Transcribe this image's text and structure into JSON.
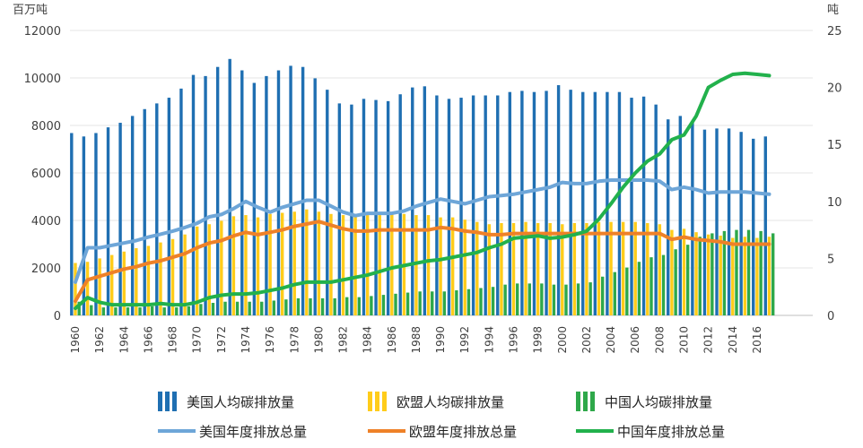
{
  "chart_data": {
    "type": "bar+line",
    "left_axis": {
      "label": "百万吨",
      "ylim": [
        0,
        12000
      ],
      "ticks": [
        0,
        2000,
        4000,
        6000,
        8000,
        10000,
        12000
      ]
    },
    "right_axis": {
      "label": "吨",
      "ylim": [
        0,
        25
      ],
      "ticks": [
        0,
        5,
        10,
        15,
        20,
        25
      ]
    },
    "x_years": [
      1960,
      1961,
      1962,
      1963,
      1964,
      1965,
      1966,
      1967,
      1968,
      1969,
      1970,
      1971,
      1972,
      1973,
      1974,
      1975,
      1976,
      1977,
      1978,
      1979,
      1980,
      1981,
      1982,
      1983,
      1984,
      1985,
      1986,
      1987,
      1988,
      1989,
      1990,
      1991,
      1992,
      1993,
      1994,
      1995,
      1996,
      1997,
      1998,
      1999,
      2000,
      2001,
      2002,
      2003,
      2004,
      2005,
      2006,
      2007,
      2008,
      2009,
      2010,
      2011,
      2012,
      2013,
      2014,
      2015,
      2016,
      2017
    ],
    "x_tick_labels": [
      "1960",
      "1962",
      "1964",
      "1966",
      "1968",
      "1970",
      "1972",
      "1974",
      "1976",
      "1978",
      "1980",
      "1982",
      "1984",
      "1986",
      "1988",
      "1990",
      "1992",
      "1994",
      "1996",
      "1998",
      "2000",
      "2002",
      "2004",
      "2006",
      "2008",
      "2010",
      "2012",
      "2014",
      "2016"
    ],
    "series": [
      {
        "name": "美国人均碳排放量",
        "kind": "bar",
        "axis": "right",
        "color": "#1f6fb2",
        "values": [
          16.0,
          15.7,
          16.0,
          16.5,
          16.9,
          17.5,
          18.1,
          18.6,
          19.1,
          19.9,
          21.1,
          21.0,
          21.8,
          22.5,
          21.5,
          20.4,
          21.0,
          21.5,
          21.9,
          21.8,
          20.8,
          19.8,
          18.6,
          18.5,
          19.0,
          18.9,
          18.8,
          19.4,
          20.0,
          20.1,
          19.3,
          19.0,
          19.1,
          19.3,
          19.3,
          19.3,
          19.6,
          19.7,
          19.6,
          19.7,
          20.2,
          19.8,
          19.6,
          19.6,
          19.6,
          19.6,
          19.1,
          19.2,
          18.5,
          17.2,
          17.5,
          17.0,
          16.3,
          16.4,
          16.4,
          16.1,
          15.5,
          15.7
        ]
      },
      {
        "name": "欧盟人均碳排放量",
        "kind": "bar",
        "axis": "right",
        "color": "#ffcc1a",
        "values": [
          4.6,
          4.7,
          5.0,
          5.3,
          5.6,
          5.9,
          6.1,
          6.4,
          6.7,
          7.1,
          7.8,
          8.0,
          8.3,
          8.7,
          8.8,
          8.6,
          8.9,
          9.0,
          9.1,
          9.3,
          9.1,
          8.9,
          8.8,
          8.7,
          8.8,
          8.8,
          8.9,
          8.9,
          8.8,
          8.8,
          8.6,
          8.6,
          8.4,
          8.2,
          8.0,
          8.1,
          8.1,
          8.2,
          8.1,
          8.1,
          8.0,
          8.1,
          8.1,
          8.2,
          8.2,
          8.2,
          8.2,
          8.1,
          8.0,
          7.5,
          7.6,
          7.3,
          7.1,
          7.0,
          6.8,
          6.9,
          6.8,
          6.9
        ]
      },
      {
        "name": "中国人均碳排放量",
        "kind": "bar",
        "axis": "right",
        "color": "#2ea84a",
        "values": [
          1.2,
          0.9,
          0.7,
          0.7,
          0.7,
          0.7,
          0.8,
          0.7,
          0.7,
          0.8,
          1.0,
          1.1,
          1.2,
          1.2,
          1.2,
          1.2,
          1.3,
          1.4,
          1.5,
          1.5,
          1.5,
          1.5,
          1.6,
          1.6,
          1.7,
          1.8,
          1.9,
          2.0,
          2.1,
          2.1,
          2.1,
          2.2,
          2.3,
          2.4,
          2.5,
          2.7,
          2.8,
          2.8,
          2.8,
          2.7,
          2.7,
          2.8,
          2.9,
          3.4,
          3.8,
          4.2,
          4.7,
          5.1,
          5.3,
          5.8,
          6.2,
          6.9,
          7.2,
          7.4,
          7.5,
          7.5,
          7.4,
          7.2
        ]
      },
      {
        "name": "美国年度排放总量",
        "kind": "line",
        "axis": "left",
        "color": "#6ea6d8",
        "values": [
          1400,
          2850,
          2850,
          2950,
          3050,
          3150,
          3300,
          3420,
          3550,
          3700,
          3880,
          4150,
          4250,
          4500,
          4800,
          4550,
          4350,
          4550,
          4700,
          4850,
          4850,
          4600,
          4350,
          4200,
          4300,
          4300,
          4300,
          4400,
          4600,
          4750,
          4900,
          4800,
          4700,
          4850,
          5000,
          5050,
          5100,
          5200,
          5300,
          5400,
          5600,
          5550,
          5550,
          5650,
          5700,
          5700,
          5700,
          5700,
          5650,
          5300,
          5400,
          5300,
          5150,
          5200,
          5200,
          5200,
          5150,
          5100
        ]
      },
      {
        "name": "欧盟年度排放总量",
        "kind": "line",
        "axis": "left",
        "color": "#ee8128",
        "values": [
          600,
          1500,
          1650,
          1800,
          1950,
          2050,
          2200,
          2300,
          2450,
          2600,
          2850,
          3050,
          3150,
          3350,
          3500,
          3400,
          3500,
          3600,
          3750,
          3850,
          3950,
          3800,
          3650,
          3550,
          3550,
          3600,
          3600,
          3600,
          3600,
          3600,
          3700,
          3650,
          3550,
          3500,
          3400,
          3400,
          3450,
          3450,
          3450,
          3450,
          3450,
          3450,
          3450,
          3450,
          3450,
          3450,
          3450,
          3450,
          3450,
          3200,
          3300,
          3200,
          3150,
          3100,
          3000,
          3000,
          3000,
          3000
        ]
      },
      {
        "name": "中国年度排放总量",
        "kind": "line",
        "axis": "left",
        "color": "#22b14c",
        "values": [
          300,
          750,
          550,
          450,
          450,
          450,
          450,
          500,
          450,
          450,
          550,
          750,
          850,
          900,
          900,
          950,
          1050,
          1150,
          1300,
          1400,
          1400,
          1400,
          1500,
          1600,
          1700,
          1850,
          2000,
          2100,
          2200,
          2300,
          2350,
          2450,
          2550,
          2650,
          2850,
          3000,
          3250,
          3300,
          3350,
          3250,
          3300,
          3400,
          3550,
          4050,
          4700,
          5400,
          6000,
          6500,
          6800,
          7400,
          7600,
          8400,
          9600,
          9900,
          10150,
          10200,
          10150,
          10100
        ]
      }
    ]
  },
  "legend": {
    "items": [
      {
        "label": "美国人均碳排放量",
        "kind": "bar",
        "color": "#1f6fb2"
      },
      {
        "label": "欧盟人均碳排放量",
        "kind": "bar",
        "color": "#ffcc1a"
      },
      {
        "label": "中国人均碳排放量",
        "kind": "bar",
        "color": "#2ea84a"
      },
      {
        "label": "美国年度排放总量",
        "kind": "line",
        "color": "#6ea6d8"
      },
      {
        "label": "欧盟年度排放总量",
        "kind": "line",
        "color": "#ee8128"
      },
      {
        "label": "中国年度排放总量",
        "kind": "line",
        "color": "#22b14c"
      }
    ]
  }
}
